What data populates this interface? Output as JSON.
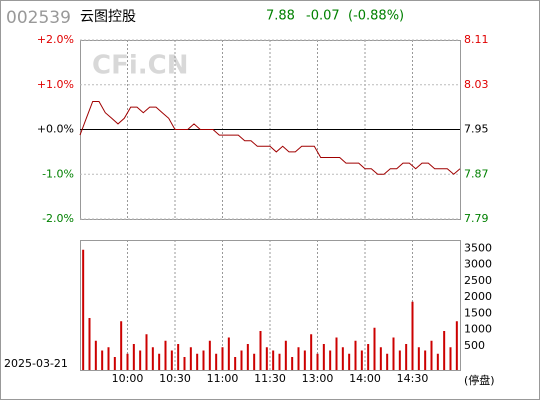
{
  "header": {
    "code": "002539",
    "name": "云图控股",
    "price": "7.88",
    "change": "-0.07",
    "pct": "(-0.88%)",
    "watermark": "CFi.CN"
  },
  "footer": {
    "date": "2025-03-21",
    "status": "(停盘)"
  },
  "chart_data": [
    {
      "type": "line",
      "color": "#a00000",
      "up_color": "#e00000",
      "down_color": "#008000",
      "flat_color": "#000000",
      "reference": 7.95,
      "values": [
        7.94,
        7.97,
        8.0,
        8.0,
        7.98,
        7.97,
        7.96,
        7.97,
        7.99,
        7.99,
        7.98,
        7.99,
        7.99,
        7.98,
        7.97,
        7.95,
        7.95,
        7.95,
        7.96,
        7.95,
        7.95,
        7.95,
        7.94,
        7.94,
        7.94,
        7.94,
        7.93,
        7.93,
        7.92,
        7.92,
        7.92,
        7.91,
        7.92,
        7.91,
        7.91,
        7.92,
        7.92,
        7.92,
        7.9,
        7.9,
        7.9,
        7.9,
        7.89,
        7.89,
        7.89,
        7.88,
        7.88,
        7.87,
        7.87,
        7.88,
        7.88,
        7.89,
        7.89,
        7.88,
        7.89,
        7.89,
        7.88,
        7.88,
        7.88,
        7.87,
        7.88
      ],
      "ylim": [
        7.79,
        8.11
      ],
      "yticks": [
        8.11,
        8.03,
        7.95,
        7.87,
        7.79
      ],
      "y2lim": [
        -2,
        2
      ],
      "y2ticks": [
        {
          "value": 2,
          "label": "+2.0%"
        },
        {
          "value": 1,
          "label": "+1.0%"
        },
        {
          "value": 0,
          "label": "+0.0%"
        },
        {
          "value": -1,
          "label": "-1.0%"
        },
        {
          "value": -2,
          "label": "-2.0%"
        }
      ],
      "xlim": [
        0,
        240
      ],
      "xticks": [
        {
          "value": 30,
          "label": "10:00"
        },
        {
          "value": 60,
          "label": "10:30"
        },
        {
          "value": 90,
          "label": "11:00"
        },
        {
          "value": 120,
          "label": "11:30"
        },
        {
          "value": 150,
          "label": "13:00"
        },
        {
          "value": 180,
          "label": "14:00"
        },
        {
          "value": 210,
          "label": "14:30"
        }
      ],
      "grid": true
    },
    {
      "type": "bar",
      "color": "#cc0000",
      "values": [
        3700,
        1600,
        900,
        600,
        700,
        400,
        1500,
        500,
        800,
        600,
        1100,
        700,
        500,
        900,
        600,
        800,
        400,
        700,
        500,
        600,
        900,
        500,
        700,
        1000,
        400,
        600,
        800,
        500,
        1200,
        700,
        600,
        500,
        900,
        400,
        700,
        600,
        1100,
        500,
        800,
        600,
        1000,
        700,
        500,
        900,
        600,
        800,
        1300,
        700,
        500,
        1000,
        600,
        800,
        2100,
        700,
        600,
        900,
        500,
        1200,
        700,
        1500
      ],
      "ylim": [
        0,
        4000
      ],
      "yticks": [
        3500,
        3000,
        2500,
        2000,
        1500,
        1000,
        500
      ]
    }
  ]
}
